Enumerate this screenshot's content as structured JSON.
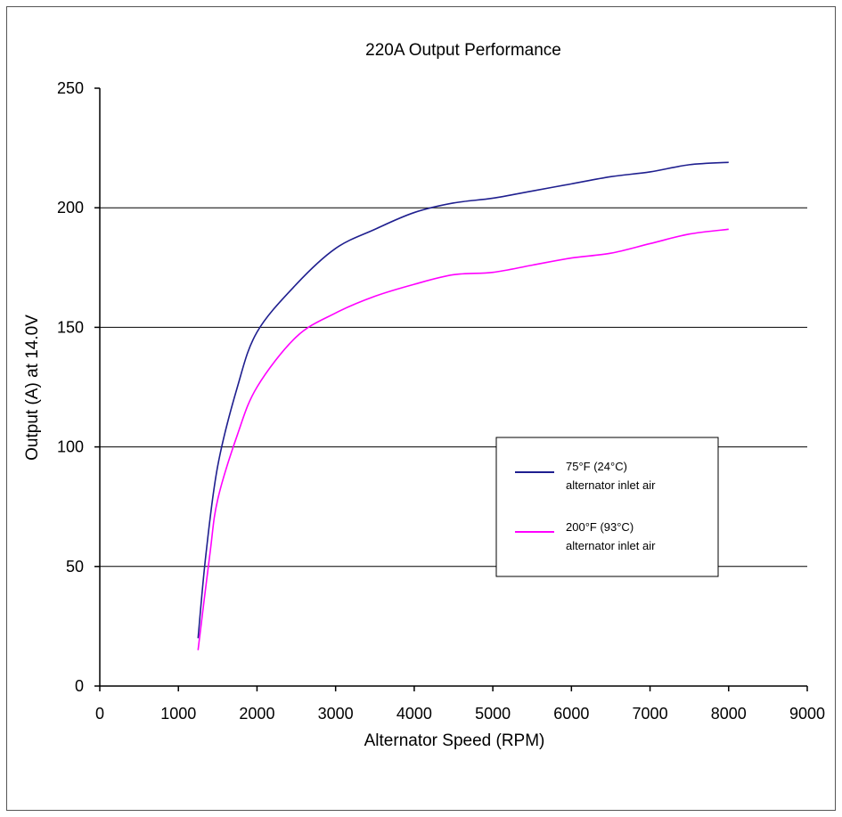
{
  "chart_data": {
    "type": "line",
    "title": "220A Output Performance",
    "xlabel": "Alternator Speed (RPM)",
    "ylabel": "Output (A) at 14.0V",
    "xlim": [
      0,
      9000
    ],
    "ylim": [
      0,
      250
    ],
    "xticks": [
      0,
      1000,
      2000,
      3000,
      4000,
      5000,
      6000,
      7000,
      8000,
      9000
    ],
    "yticks": [
      0,
      50,
      100,
      150,
      200,
      250
    ],
    "grid": "horizontal major lines",
    "legend_position": "center-right",
    "series": [
      {
        "name_line1": "75°F (24°C)",
        "name_line2": "alternator inlet air",
        "color": "#1f1f8f",
        "x": [
          1250,
          1350,
          1500,
          1750,
          2000,
          2500,
          3000,
          3500,
          4000,
          4500,
          5000,
          5500,
          6000,
          6500,
          7000,
          7500,
          8000
        ],
        "y": [
          20,
          55,
          92,
          125,
          148,
          168,
          183,
          191,
          198,
          202,
          204,
          207,
          210,
          213,
          215,
          218,
          219
        ]
      },
      {
        "name_line1": "200°F (93°C)",
        "name_line2": "alternator inlet air",
        "color": "#ff00ff",
        "x": [
          1250,
          1400,
          1500,
          1750,
          2000,
          2500,
          3000,
          3500,
          4000,
          4500,
          5000,
          5500,
          6000,
          6500,
          7000,
          7500,
          8000
        ],
        "y": [
          15,
          55,
          78,
          105,
          125,
          146,
          156,
          163,
          168,
          172,
          173,
          176,
          179,
          181,
          185,
          189,
          191
        ]
      }
    ]
  }
}
